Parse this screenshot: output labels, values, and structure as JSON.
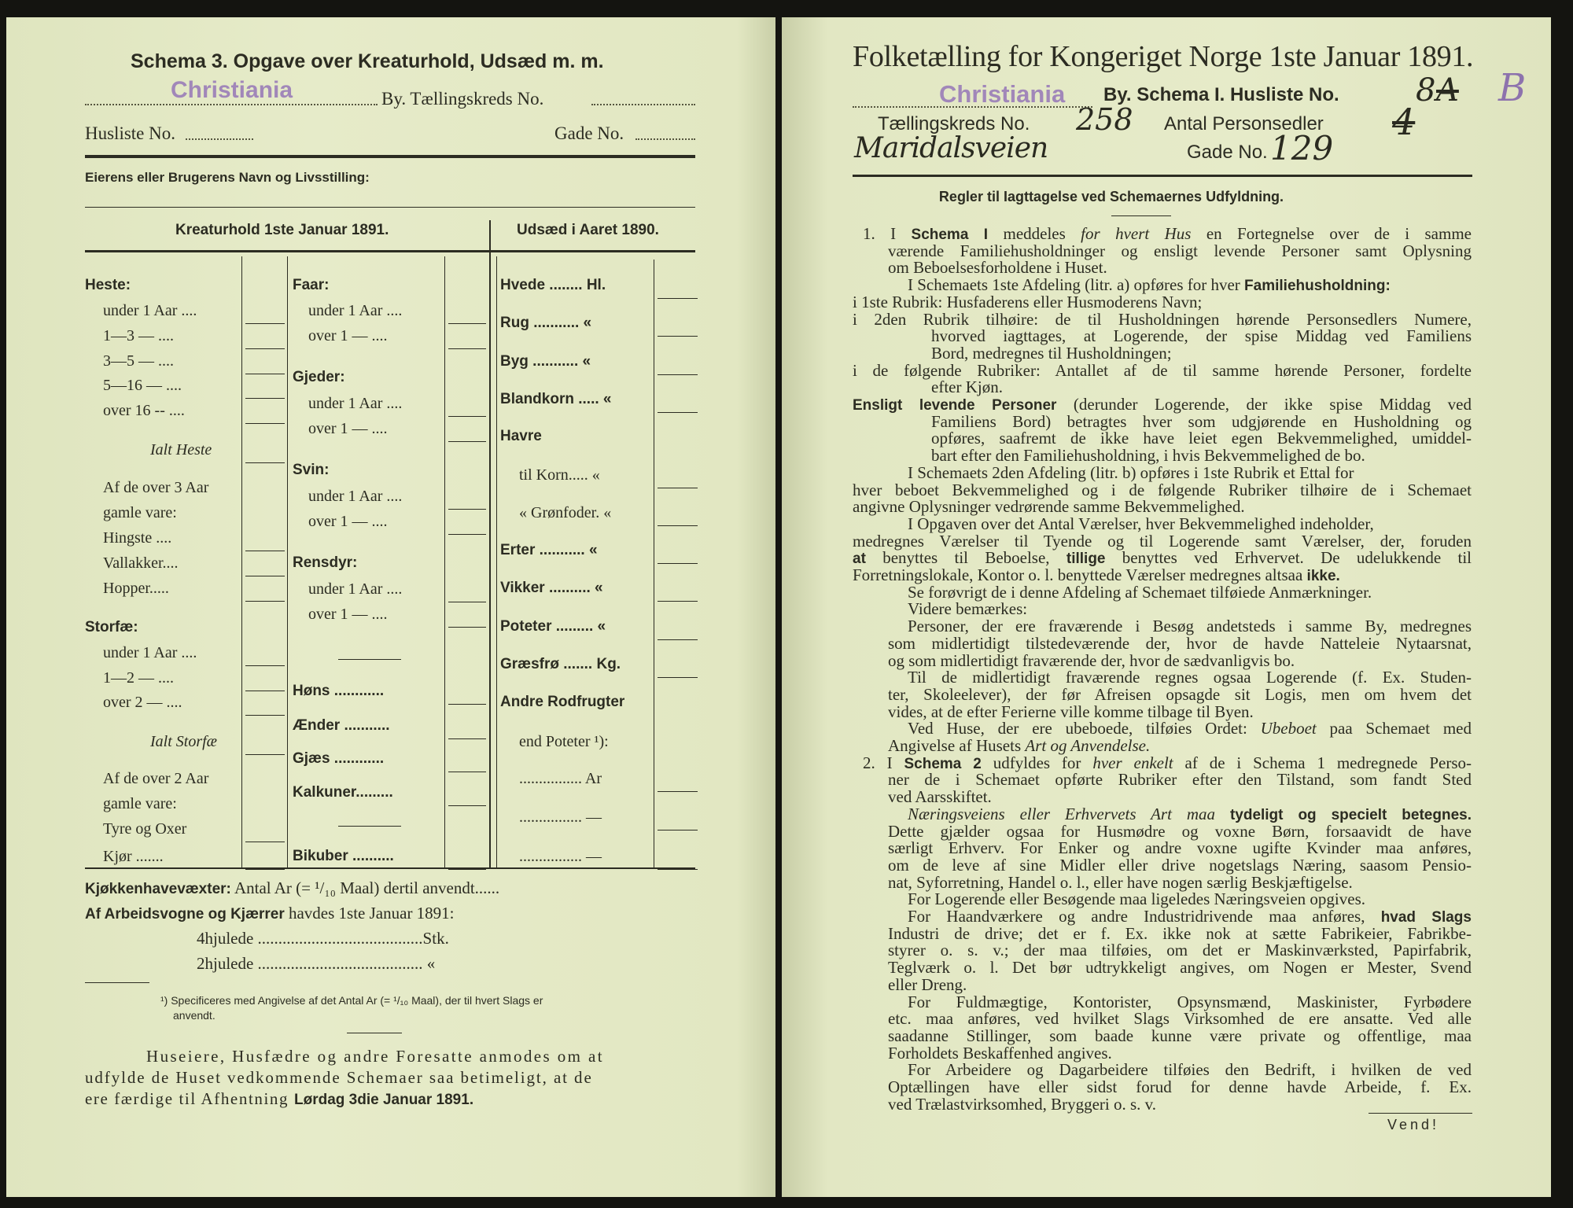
{
  "left": {
    "title": "Schema 3.  Opgave over Kreaturhold, Udsæd m. m.",
    "stamp_city": "Christiania",
    "by_label": "By.  Tællingskreds No.",
    "husliste_label": "Husliste No.",
    "gade_label": "Gade No.",
    "owner_label": "Eierens eller Brugerens Navn og Livsstilling:",
    "header_livestock": "Kreaturhold 1ste Januar 1891.",
    "header_seed": "Udsæd i Aaret 1890.",
    "col1": [
      {
        "label": "Heste:",
        "kind": "head"
      },
      {
        "label": "under 1 Aar ....",
        "blank": true
      },
      {
        "label": "1—3  —  ....",
        "blank": true
      },
      {
        "label": "3—5  —  ....",
        "blank": true
      },
      {
        "label": "5—16 —  ....",
        "blank": true
      },
      {
        "label": "over 16 --  ....",
        "blank": true
      },
      {
        "label": "Ialt Heste",
        "kind": "total",
        "blank": true
      },
      {
        "label": "Af de over 3 Aar"
      },
      {
        "label": "gamle vare:"
      },
      {
        "label": "Hingste ....",
        "blank": true
      },
      {
        "label": "Vallakker....",
        "blank": true
      },
      {
        "label": "Hopper.....",
        "blank": true
      },
      {
        "label": "Storfæ:",
        "kind": "head"
      },
      {
        "label": "under 1 Aar ....",
        "blank": true
      },
      {
        "label": "1—2  —  ....",
        "blank": true
      },
      {
        "label": "over 2  —  ....",
        "blank": true
      },
      {
        "label": "Ialt Storfæ",
        "kind": "total",
        "blank": true
      },
      {
        "label": "Af de over 2 Aar"
      },
      {
        "label": "gamle vare:"
      },
      {
        "label": "Tyre og Oxer",
        "blank": true
      },
      {
        "label": "Kjør .......",
        "blank": true
      }
    ],
    "col2": [
      {
        "label": "Faar:",
        "kind": "head"
      },
      {
        "label": "under 1 Aar ....",
        "blank": true
      },
      {
        "label": "over 1  —  ....",
        "blank": true
      },
      {
        "label": "Gjeder:",
        "kind": "head"
      },
      {
        "label": "under 1 Aar ....",
        "blank": true
      },
      {
        "label": "over 1  —  ....",
        "blank": true
      },
      {
        "label": "Svin:",
        "kind": "head"
      },
      {
        "label": "under 1 Aar ....",
        "blank": true
      },
      {
        "label": "over 1  —  ....",
        "blank": true
      },
      {
        "label": "Rensdyr:",
        "kind": "head"
      },
      {
        "label": "under 1 Aar ....",
        "blank": true
      },
      {
        "label": "over 1  —  ....",
        "blank": true
      },
      {
        "label": "Høns ............",
        "kind": "headdots",
        "blank": true
      },
      {
        "label": "Ænder ...........",
        "kind": "headdots",
        "blank": true
      },
      {
        "label": "Gjæs ............",
        "kind": "headdots",
        "blank": true
      },
      {
        "label": "Kalkuner.........",
        "kind": "headdots",
        "blank": true
      },
      {
        "label": "Bikuber ..........",
        "kind": "headdots",
        "blank": true
      }
    ],
    "col3": [
      {
        "label": "Hvede ........ Hl.",
        "kind": "headdots",
        "blank": true
      },
      {
        "label": "Rug ........... «",
        "kind": "headdots",
        "blank": true
      },
      {
        "label": "Byg ........... «",
        "kind": "headdots",
        "blank": true
      },
      {
        "label": "Blandkorn ..... «",
        "kind": "headdots",
        "blank": true
      },
      {
        "label": "Havre",
        "kind": "head"
      },
      {
        "label": "til Korn..... «",
        "blank": true
      },
      {
        "label": "« Grønfoder. «",
        "blank": true
      },
      {
        "label": "Erter ........... «",
        "kind": "headdots",
        "blank": true
      },
      {
        "label": "Vikker .......... «",
        "kind": "headdots",
        "blank": true
      },
      {
        "label": "Poteter ......... «",
        "kind": "headdots",
        "blank": true
      },
      {
        "label": "Græsfrø ....... Kg.",
        "kind": "headdots",
        "blank": true
      },
      {
        "label": "Andre Rodfrugter",
        "kind": "head"
      },
      {
        "label": "end Poteter ¹):"
      },
      {
        "label": "................ Ar",
        "blank": true
      },
      {
        "label": "................ —",
        "blank": true
      },
      {
        "label": "................ —",
        "blank": true
      }
    ],
    "kitchen_label": "Kjøkkenhavevæxter:",
    "kitchen_text": "Antal Ar (= ¹/₁₀ Maal) dertil anvendt......",
    "wagons_bold": "Af Arbeidsvogne og Kjærrer",
    "wagons_text": "havdes 1ste Januar 1891:",
    "wheel4": "4hjulede ........................................Stk.",
    "wheel2": "2hjulede ........................................ «",
    "footnote_1": "¹) Specificeres med Angivelse af det Antal Ar (= ¹/₁₀ Maal), der til hvert Slags er",
    "footnote_2": "anvendt.",
    "notice_1": "Huseiere, Husfædre og andre Foresatte anmodes om at",
    "notice_2": "udfylde de Huset vedkommende Schemaer saa betimeligt, at de",
    "notice_3a": "ere færdige til Afhentning",
    "notice_3b": "Lørdag 3die Januar 1891."
  },
  "right": {
    "title": "Folketælling for Kongeriget Norge 1ste Januar 1891.",
    "stamp_city": "Christiania",
    "schema_label": "By.  Schema I.  Husliste No.",
    "husliste_hand": "8",
    "husliste_struck": "A",
    "husliste_stamp": "B",
    "kreds_label": "Tællingskreds No.",
    "kreds_hand": "258",
    "personsedler_label": "Antal Personsedler",
    "personsedler_hand": "4",
    "street_hand": "Maridalsveien",
    "gade_label": "Gade No.",
    "gade_hand": "129",
    "rules_heading": "Regler til Iagttagelse ved Schemaernes Udfyldning.",
    "lines": [
      [
        "1.  I ",
        {
          "b": "Schema I"
        },
        " meddeles ",
        {
          "i": "for hvert Hus"
        },
        " en Fortegnelse over de i samme"
      ],
      [
        "værende Familiehusholdninger og ensligt levende Personer samt Oplysning"
      ],
      [
        "om Beboelsesforholdene i Huset."
      ],
      [
        "I Schemaets 1ste Afdeling (litr. a) opføres for hver ",
        {
          "b": "Familiehusholdning:"
        }
      ],
      [
        "i 1ste Rubrik: Husfaderens eller Husmoderens Navn;"
      ],
      [
        "i 2den Rubrik tilhøire: de til Husholdningen hørende Personsedlers Numere,"
      ],
      [
        "hvorved iagttages, at Logerende, der spise Middag ved Familiens"
      ],
      [
        "Bord, medregnes til Husholdningen;"
      ],
      [
        "i de følgende Rubriker: Antallet af de til samme hørende Personer, fordelte"
      ],
      [
        "efter Kjøn."
      ],
      [
        {
          "b": "Ensligt levende Personer"
        },
        " (derunder Logerende, der ikke spise Middag ved"
      ],
      [
        "Familiens Bord) betragtes hver som udgjørende en Husholdning og"
      ],
      [
        "opføres, saafremt de ikke have leiet egen Bekvemmelighed, umiddel-"
      ],
      [
        "bart efter den Familiehusholdning, i hvis Bekvemmelighed de bo."
      ],
      [
        "I Schemaets 2den Afdeling (litr. b) opføres i 1ste Rubrik et Ettal for"
      ],
      [
        "hver beboet Bekvemmelighed og i de følgende Rubriker tilhøire de i Schemaet"
      ],
      [
        "angivne Oplysninger vedrørende samme Bekvemmelighed."
      ],
      [
        "I Opgaven over det Antal Værelser, hver Bekvemmelighed indeholder,"
      ],
      [
        "medregnes Værelser til Tyende og til Logerende samt Værelser, der, foruden"
      ],
      [
        {
          "b": "at"
        },
        " benyttes til Beboelse, ",
        {
          "b": "tillige"
        },
        " benyttes ved Erhvervet.  De udelukkende til"
      ],
      [
        "Forretningslokale, Kontor o. l. benyttede Værelser medregnes altsaa ",
        {
          "b": "ikke."
        }
      ],
      [
        "Se forøvrigt de i denne Afdeling af Schemaet tilføiede Anmærkninger."
      ],
      [
        "Videre bemærkes:"
      ],
      [
        "Personer, der ere fraværende i Besøg andetsteds i samme By, medregnes"
      ],
      [
        "som midlertidigt tilstedeværende der, hvor de havde Natteleie Nytaarsnat,"
      ],
      [
        "og som midlertidigt fraværende der, hvor de sædvanligvis bo."
      ],
      [
        "Til de midlertidigt fraværende regnes ogsaa Logerende (f. Ex. Studen-"
      ],
      [
        "ter, Skoleelever), der før Afreisen opsagde sit Logis, men om hvem det"
      ],
      [
        "vides, at de efter Ferierne ville komme tilbage til Byen."
      ],
      [
        "Ved Huse, der ere ubeboede, tilføies Ordet: ",
        {
          "i": "Ubeboet"
        },
        " paa Schemaet med"
      ],
      [
        "Angivelse af Husets ",
        {
          "i": "Art og Anvendelse."
        }
      ],
      [
        "2.  I ",
        {
          "b": "Schema 2"
        },
        " udfyldes for ",
        {
          "i": "hver enkelt"
        },
        " af de i Schema 1 medregnede Perso-"
      ],
      [
        "ner de i Schemaet opførte Rubriker efter den Tilstand, som fandt Sted"
      ],
      [
        "ved Aarsskiftet."
      ],
      [
        {
          "i": "Næringsveiens eller Erhvervets Art maa"
        },
        " ",
        {
          "b": "tydeligt og specielt betegnes."
        }
      ],
      [
        "Dette gjælder ogsaa for Husmødre og voxne Børn, forsaavidt de have"
      ],
      [
        "særligt Erhverv.  For Enker og andre voxne ugifte Kvinder maa anføres,"
      ],
      [
        "om de leve af sine Midler eller drive nogetslags Næring, saasom Pensio-"
      ],
      [
        "nat, Syforretning, Handel o. l., eller have nogen særlig Beskjæftigelse."
      ],
      [
        "For Logerende eller Besøgende maa ligeledes Næringsveien opgives."
      ],
      [
        "For Haandværkere og andre Industridrivende maa anføres, ",
        {
          "b": "hvad Slags"
        }
      ],
      [
        "Industri de drive; det er f. Ex. ikke nok at sætte Fabrikeier, Fabrikbe-"
      ],
      [
        "styrer o. s. v.; der maa tilføies, om det er Maskinværksted, Papirfabrik,"
      ],
      [
        "Teglværk o. l.  Det bør udtrykkeligt angives, om Nogen er Mester, Svend"
      ],
      [
        "eller Dreng."
      ],
      [
        "For Fuldmægtige, Kontorister, Opsynsmænd, Maskinister, Fyrbødere"
      ],
      [
        "etc. maa anføres, ved hvilket Slags Virksomhed de ere ansatte.  Ved alle"
      ],
      [
        "saadanne Stillinger, som baade kunne være private og offentlige, maa"
      ],
      [
        "Forholdets Beskaffenhed angives."
      ],
      [
        "For Arbeidere og Dagarbeidere tilføies den Bedrift, i hvilken de ved"
      ],
      [
        "Optællingen have eller sidst forud for denne havde Arbeide, f. Ex."
      ],
      [
        "ved Trælastvirksomhed, Bryggeri o. s. v."
      ]
    ],
    "vend": "Vend!"
  },
  "colors": {
    "paper": "#e4e9c5",
    "ink": "#2c2c22",
    "stamp": "#9a7db8"
  }
}
